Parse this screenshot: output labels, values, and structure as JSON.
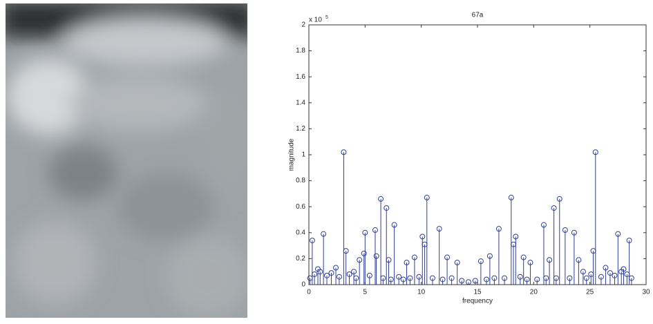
{
  "chart_data": {
    "type": "stem",
    "title": "67a",
    "xlabel": "frequency",
    "ylabel": "magnitude",
    "y_multiplier": "x 10",
    "y_multiplier_exponent": "5",
    "color": "#2e3d96",
    "x": [
      0.1,
      0.3,
      0.5,
      0.8,
      1.0,
      1.3,
      1.6,
      2.0,
      2.4,
      2.7,
      3.1,
      3.3,
      3.6,
      4.0,
      4.2,
      4.5,
      4.9,
      5.0,
      5.4,
      5.9,
      6.0,
      6.4,
      6.6,
      6.9,
      7.1,
      7.3,
      7.6,
      8.0,
      8.4,
      8.7,
      9.0,
      9.4,
      9.8,
      10.1,
      10.3,
      10.5,
      11.0,
      11.6,
      11.9,
      12.3,
      12.7,
      13.2,
      13.6,
      14.2,
      14.8,
      15.3,
      15.8,
      16.1,
      16.5,
      16.9,
      17.4,
      18.0,
      18.2,
      18.4,
      18.8,
      19.1,
      19.4,
      19.7,
      20.3,
      20.9,
      21.1,
      21.4,
      21.8,
      22.0,
      22.3,
      22.8,
      23.2,
      23.6,
      24.0,
      24.4,
      24.7,
      25.1,
      25.3,
      25.5,
      26.0,
      26.4,
      26.8,
      27.2,
      27.5,
      27.8,
      28.0,
      28.3,
      28.5,
      28.7
    ],
    "values": [
      0.05,
      0.34,
      0.08,
      0.12,
      0.1,
      0.39,
      0.07,
      0.09,
      0.13,
      0.06,
      1.02,
      0.26,
      0.08,
      0.1,
      0.05,
      0.19,
      0.24,
      0.4,
      0.07,
      0.42,
      0.22,
      0.66,
      0.05,
      0.59,
      0.19,
      0.04,
      0.46,
      0.06,
      0.04,
      0.17,
      0.05,
      0.21,
      0.06,
      0.37,
      0.31,
      0.67,
      0.05,
      0.43,
      0.04,
      0.21,
      0.05,
      0.17,
      0.03,
      0.02,
      0.03,
      0.18,
      0.04,
      0.22,
      0.05,
      0.43,
      0.05,
      0.67,
      0.31,
      0.37,
      0.06,
      0.21,
      0.04,
      0.17,
      0.04,
      0.46,
      0.05,
      0.19,
      0.59,
      0.05,
      0.66,
      0.42,
      0.05,
      0.4,
      0.19,
      0.1,
      0.05,
      0.08,
      0.26,
      1.02,
      0.06,
      0.13,
      0.09,
      0.07,
      0.39,
      0.1,
      0.12,
      0.08,
      0.34,
      0.05
    ],
    "xlim": [
      0,
      30
    ],
    "xticks": [
      0,
      5,
      10,
      15,
      20,
      25,
      30
    ],
    "ylim": [
      0,
      2
    ],
    "yticks": [
      0,
      0.2,
      0.4,
      0.6,
      0.8,
      1,
      1.2,
      1.4,
      1.6,
      1.8,
      2
    ]
  }
}
